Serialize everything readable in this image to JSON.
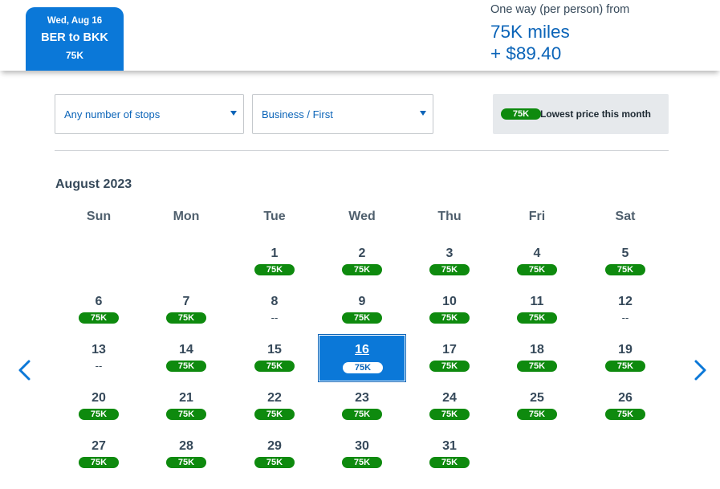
{
  "trip": {
    "date": "Wed, Aug 16",
    "route": "BER to BKK",
    "price": "75K"
  },
  "fare": {
    "label": "One way (per person) from",
    "miles": "75K miles",
    "taxes": "+ $89.40"
  },
  "filters": {
    "stops": "Any number of stops",
    "cabin": "Business / First"
  },
  "legend": {
    "badge": "75K",
    "text": "Lowest price this month"
  },
  "calendar": {
    "month": "August 2023",
    "weekdays": [
      "Sun",
      "Mon",
      "Tue",
      "Wed",
      "Thu",
      "Fri",
      "Sat"
    ],
    "selected_day": 16,
    "no_price_text": "--",
    "days": [
      {
        "day": "1",
        "price": "75K"
      },
      {
        "day": "2",
        "price": "75K"
      },
      {
        "day": "3",
        "price": "75K"
      },
      {
        "day": "4",
        "price": "75K"
      },
      {
        "day": "5",
        "price": "75K"
      },
      {
        "day": "6",
        "price": "75K"
      },
      {
        "day": "7",
        "price": "75K"
      },
      {
        "day": "8",
        "price": null
      },
      {
        "day": "9",
        "price": "75K"
      },
      {
        "day": "10",
        "price": "75K"
      },
      {
        "day": "11",
        "price": "75K"
      },
      {
        "day": "12",
        "price": null
      },
      {
        "day": "13",
        "price": null
      },
      {
        "day": "14",
        "price": "75K"
      },
      {
        "day": "15",
        "price": "75K"
      },
      {
        "day": "16",
        "price": "75K"
      },
      {
        "day": "17",
        "price": "75K"
      },
      {
        "day": "18",
        "price": "75K"
      },
      {
        "day": "19",
        "price": "75K"
      },
      {
        "day": "20",
        "price": "75K"
      },
      {
        "day": "21",
        "price": "75K"
      },
      {
        "day": "22",
        "price": "75K"
      },
      {
        "day": "23",
        "price": "75K"
      },
      {
        "day": "24",
        "price": "75K"
      },
      {
        "day": "25",
        "price": "75K"
      },
      {
        "day": "26",
        "price": "75K"
      },
      {
        "day": "27",
        "price": "75K"
      },
      {
        "day": "28",
        "price": "75K"
      },
      {
        "day": "29",
        "price": "75K"
      },
      {
        "day": "30",
        "price": "75K"
      },
      {
        "day": "31",
        "price": "75K"
      }
    ]
  },
  "icons": {
    "prev": "chevron-left-icon",
    "next": "chevron-right-icon"
  },
  "colors": {
    "brand_blue": "#0b78d8",
    "link_blue": "#0b64b8",
    "price_green": "#0e8a0e"
  }
}
